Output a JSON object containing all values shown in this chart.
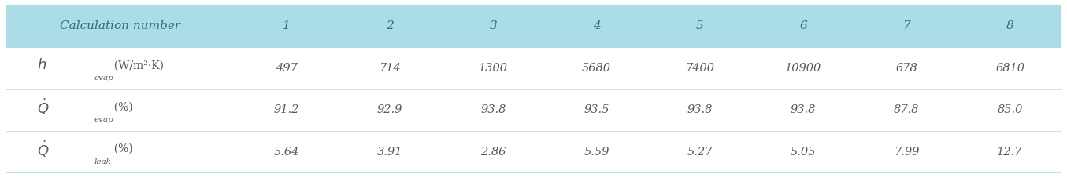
{
  "header_bg": "#aadde6",
  "header_text_color": "#3a6b7a",
  "row_bg": "#ffffff",
  "row_text_color": "#5a5a5a",
  "border_color": "#aadde6",
  "col_header": "Calculation number",
  "columns": [
    "1",
    "2",
    "3",
    "4",
    "5",
    "6",
    "7",
    "8"
  ],
  "rows": [
    {
      "label_main": "$h$",
      "label_sub": "evap",
      "label_unit": "  (W/m²·K)",
      "values": [
        "497",
        "714",
        "1300",
        "5680",
        "7400",
        "10900",
        "678",
        "6810"
      ]
    },
    {
      "label_main": "$\\dot{Q}$",
      "label_sub": "evap",
      "label_unit": "  (%)",
      "values": [
        "91.2",
        "92.9",
        "93.8",
        "93.5",
        "93.8",
        "93.8",
        "87.8",
        "85.0"
      ]
    },
    {
      "label_main": "$\\dot{Q}$",
      "label_sub": "leak",
      "label_unit": "  (%)",
      "values": [
        "5.64",
        "3.91",
        "2.86",
        "5.59",
        "5.27",
        "5.05",
        "7.99",
        "12.7"
      ]
    }
  ],
  "figsize": [
    13.55,
    2.27
  ],
  "dpi": 100
}
